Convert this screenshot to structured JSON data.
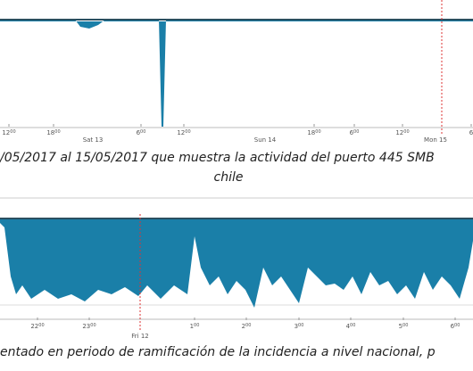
{
  "figure_1": {
    "hour_ticks": [
      {
        "h": "12",
        "m": "00"
      },
      {
        "h": "18",
        "m": "00"
      },
      {
        "h": "6",
        "m": "00"
      },
      {
        "h": "12",
        "m": "00"
      },
      {
        "h": "18",
        "m": "00"
      },
      {
        "h": "6",
        "m": "00"
      },
      {
        "h": "12",
        "m": "00"
      },
      {
        "h": "6"
      }
    ],
    "day_ticks": [
      "Sat 13",
      "Sun 14",
      "Mon 15"
    ],
    "caption": [
      "/05/2017 al 15/05/2017 que muestra la actividad del puerto 445 SMB",
      "chile"
    ]
  },
  "figure_2": {
    "hour_ticks": [
      {
        "h": "22",
        "m": "00"
      },
      {
        "h": "23",
        "m": "00"
      },
      {
        "h": "1",
        "m": "00"
      },
      {
        "h": "2",
        "m": "00"
      },
      {
        "h": "3",
        "m": "00"
      },
      {
        "h": "4",
        "m": "00"
      },
      {
        "h": "5",
        "m": "00"
      },
      {
        "h": "6",
        "m": "00"
      }
    ],
    "day_ticks": [
      "Fri 12"
    ],
    "caption": [
      "entado en periodo de ramificación de la incidencia a nivel nacional, p"
    ]
  }
}
